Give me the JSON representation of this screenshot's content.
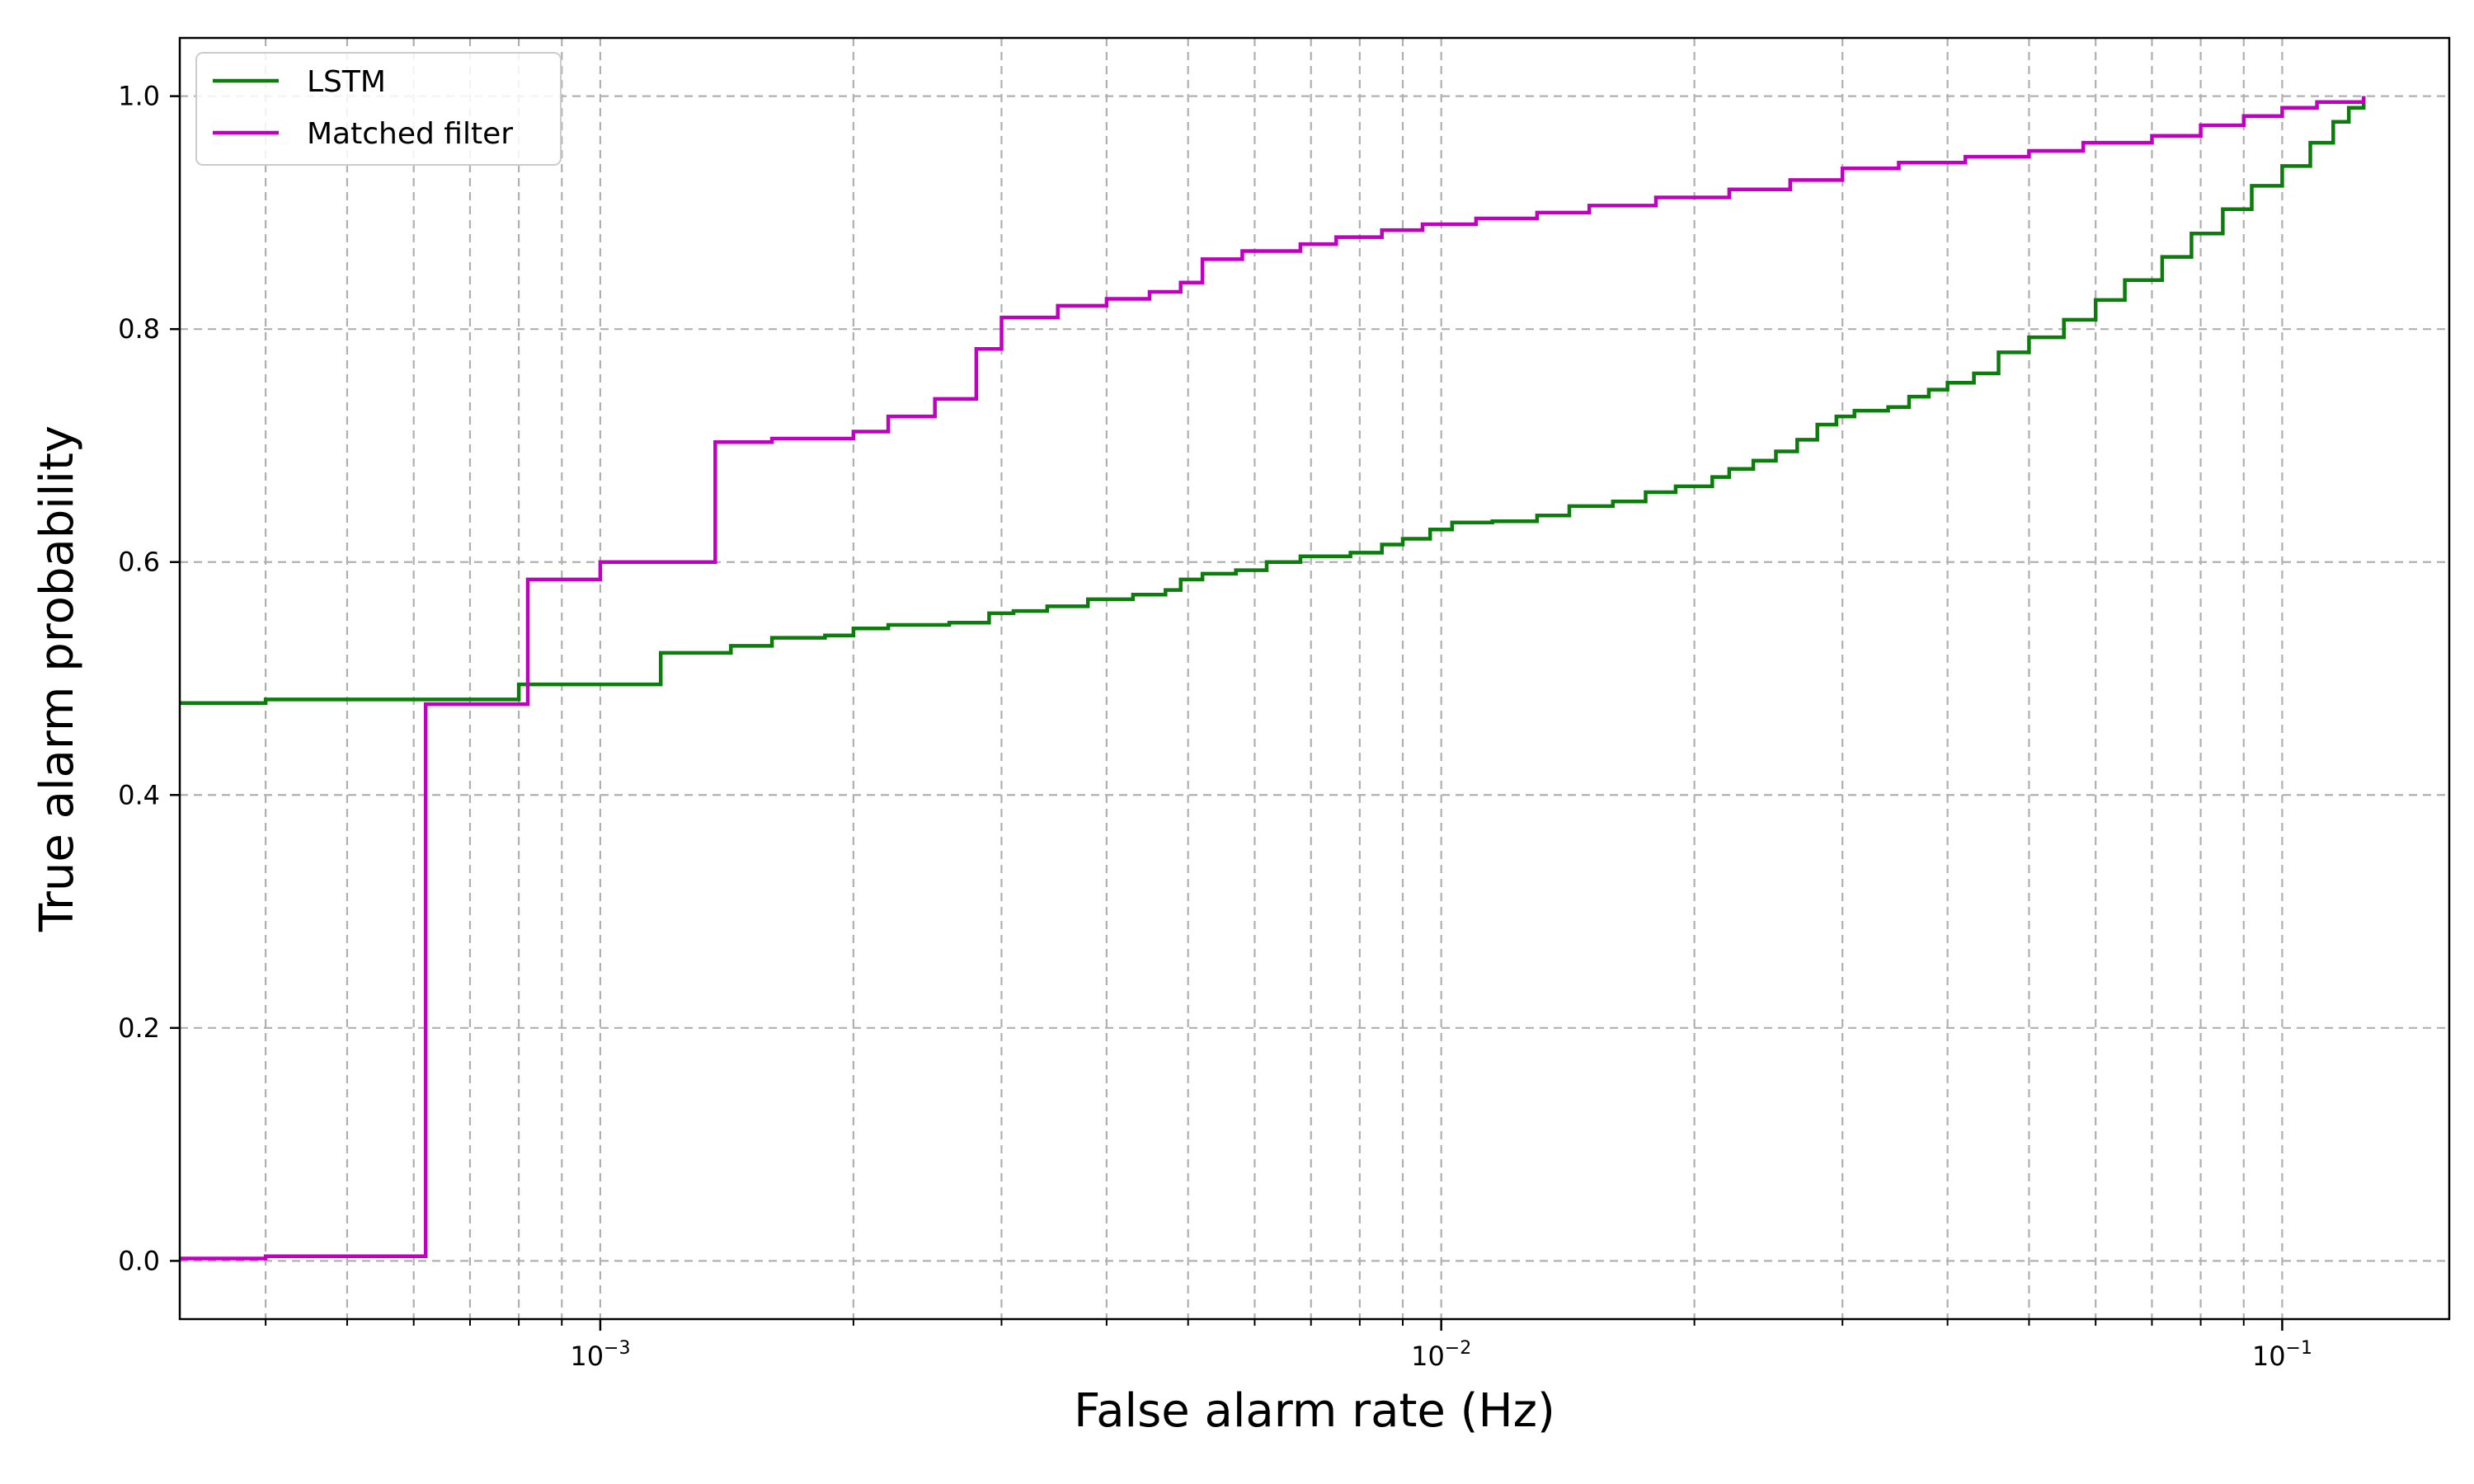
{
  "chart_data": {
    "type": "line",
    "title": "",
    "xlabel": "False alarm rate (Hz)",
    "ylabel": "True alarm probability",
    "xscale": "log",
    "xlim": [
      0.0003162,
      0.158
    ],
    "ylim": [
      -0.05,
      1.05
    ],
    "grid": "both",
    "legend_position": "top-left",
    "x_tick_labels": [
      "10−3",
      "10−2",
      "10−1"
    ],
    "y_tick_labels": [
      "0.0",
      "0.2",
      "0.4",
      "0.6",
      "0.8",
      "1.0"
    ],
    "y_ticks": [
      0.0,
      0.2,
      0.4,
      0.6,
      0.8,
      1.0
    ],
    "series": [
      {
        "name": "LSTM",
        "color": "#0a7d0a",
        "step": true,
        "points": [
          [
            0.0003162,
            0.479
          ],
          [
            0.0004,
            0.482
          ],
          [
            0.0008,
            0.495
          ],
          [
            0.00118,
            0.522
          ],
          [
            0.00143,
            0.528
          ],
          [
            0.0016,
            0.535
          ],
          [
            0.00185,
            0.537
          ],
          [
            0.002,
            0.543
          ],
          [
            0.0022,
            0.546
          ],
          [
            0.0026,
            0.548
          ],
          [
            0.0029,
            0.556
          ],
          [
            0.0031,
            0.558
          ],
          [
            0.0034,
            0.562
          ],
          [
            0.0038,
            0.568
          ],
          [
            0.0043,
            0.572
          ],
          [
            0.0047,
            0.576
          ],
          [
            0.0049,
            0.585
          ],
          [
            0.0052,
            0.59
          ],
          [
            0.0057,
            0.593
          ],
          [
            0.0062,
            0.6
          ],
          [
            0.0068,
            0.605
          ],
          [
            0.0078,
            0.608
          ],
          [
            0.0085,
            0.615
          ],
          [
            0.009,
            0.62
          ],
          [
            0.0097,
            0.628
          ],
          [
            0.0103,
            0.634
          ],
          [
            0.0115,
            0.635
          ],
          [
            0.013,
            0.64
          ],
          [
            0.0142,
            0.648
          ],
          [
            0.016,
            0.652
          ],
          [
            0.0175,
            0.66
          ],
          [
            0.019,
            0.665
          ],
          [
            0.021,
            0.673
          ],
          [
            0.022,
            0.68
          ],
          [
            0.0235,
            0.687
          ],
          [
            0.025,
            0.695
          ],
          [
            0.0265,
            0.705
          ],
          [
            0.028,
            0.718
          ],
          [
            0.0295,
            0.725
          ],
          [
            0.031,
            0.73
          ],
          [
            0.034,
            0.733
          ],
          [
            0.036,
            0.742
          ],
          [
            0.038,
            0.748
          ],
          [
            0.04,
            0.754
          ],
          [
            0.043,
            0.762
          ],
          [
            0.046,
            0.78
          ],
          [
            0.05,
            0.793
          ],
          [
            0.055,
            0.808
          ],
          [
            0.06,
            0.825
          ],
          [
            0.065,
            0.842
          ],
          [
            0.072,
            0.862
          ],
          [
            0.078,
            0.882
          ],
          [
            0.085,
            0.903
          ],
          [
            0.092,
            0.923
          ],
          [
            0.1,
            0.94
          ],
          [
            0.108,
            0.96
          ],
          [
            0.115,
            0.978
          ],
          [
            0.12,
            0.99
          ],
          [
            0.125,
            1.0
          ]
        ]
      },
      {
        "name": "Matched filter",
        "color": "#c000c0",
        "step": true,
        "points": [
          [
            0.0003162,
            0.002
          ],
          [
            0.0004,
            0.004
          ],
          [
            0.00062,
            0.478
          ],
          [
            0.00082,
            0.585
          ],
          [
            0.001,
            0.6
          ],
          [
            0.00137,
            0.703
          ],
          [
            0.0016,
            0.706
          ],
          [
            0.002,
            0.712
          ],
          [
            0.0022,
            0.725
          ],
          [
            0.0025,
            0.74
          ],
          [
            0.0028,
            0.783
          ],
          [
            0.003,
            0.81
          ],
          [
            0.0035,
            0.82
          ],
          [
            0.004,
            0.826
          ],
          [
            0.0045,
            0.832
          ],
          [
            0.0049,
            0.84
          ],
          [
            0.0052,
            0.86
          ],
          [
            0.0058,
            0.867
          ],
          [
            0.0068,
            0.873
          ],
          [
            0.0075,
            0.879
          ],
          [
            0.0085,
            0.885
          ],
          [
            0.0095,
            0.89
          ],
          [
            0.011,
            0.895
          ],
          [
            0.013,
            0.9
          ],
          [
            0.015,
            0.906
          ],
          [
            0.018,
            0.913
          ],
          [
            0.022,
            0.92
          ],
          [
            0.026,
            0.928
          ],
          [
            0.03,
            0.938
          ],
          [
            0.035,
            0.943
          ],
          [
            0.042,
            0.948
          ],
          [
            0.05,
            0.953
          ],
          [
            0.058,
            0.96
          ],
          [
            0.07,
            0.966
          ],
          [
            0.08,
            0.975
          ],
          [
            0.09,
            0.983
          ],
          [
            0.1,
            0.99
          ],
          [
            0.11,
            0.995
          ],
          [
            0.125,
            1.0
          ]
        ]
      }
    ]
  }
}
